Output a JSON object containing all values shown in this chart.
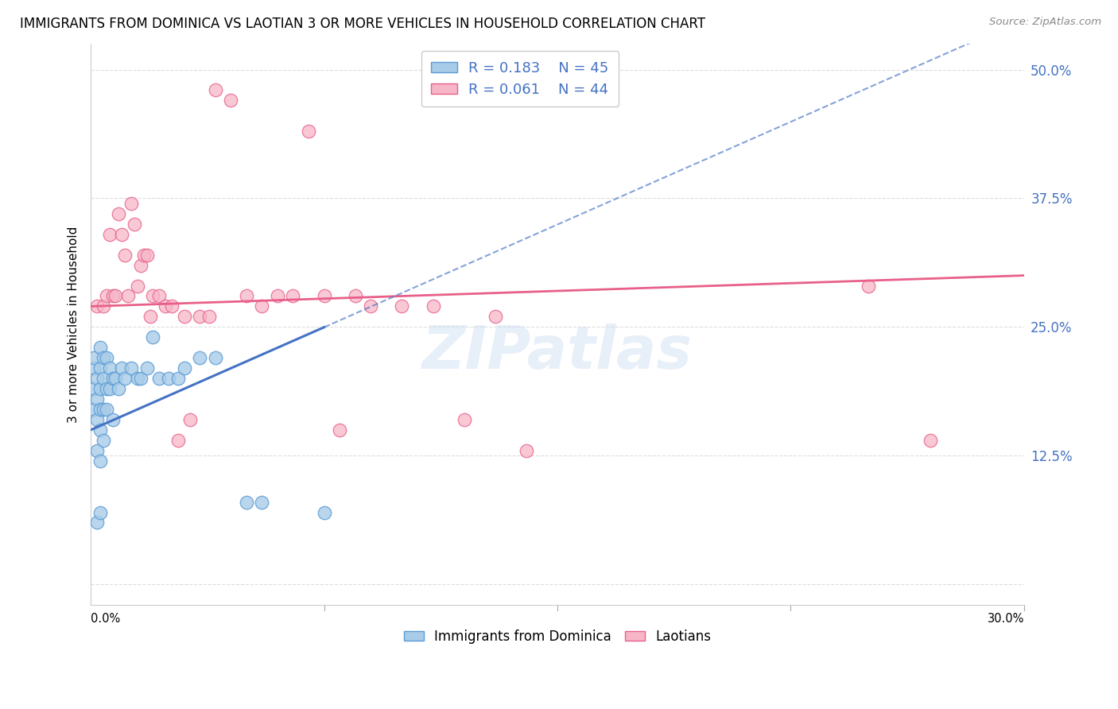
{
  "title": "IMMIGRANTS FROM DOMINICA VS LAOTIAN 3 OR MORE VEHICLES IN HOUSEHOLD CORRELATION CHART",
  "source": "Source: ZipAtlas.com",
  "ylabel": "3 or more Vehicles in Household",
  "xmin": 0.0,
  "xmax": 0.3,
  "ymin": -0.02,
  "ymax": 0.525,
  "ytick_vals": [
    0.0,
    0.125,
    0.25,
    0.375,
    0.5
  ],
  "ytick_labels": [
    "",
    "12.5%",
    "25.0%",
    "37.5%",
    "50.0%"
  ],
  "watermark": "ZIPatlas",
  "R1": "0.183",
  "N1": "45",
  "R2": "0.061",
  "N2": "44",
  "blue_fill": "#a8cce8",
  "blue_edge": "#5b9bd5",
  "pink_fill": "#f7b6c8",
  "pink_edge": "#e8608a",
  "blue_line": "#4472c4",
  "pink_line": "#e8608a",
  "blue_x": [
    0.001,
    0.001,
    0.001,
    0.001,
    0.002,
    0.002,
    0.002,
    0.002,
    0.002,
    0.003,
    0.003,
    0.003,
    0.003,
    0.003,
    0.003,
    0.003,
    0.004,
    0.004,
    0.004,
    0.004,
    0.005,
    0.005,
    0.005,
    0.006,
    0.006,
    0.007,
    0.007,
    0.008,
    0.009,
    0.01,
    0.011,
    0.013,
    0.015,
    0.016,
    0.018,
    0.02,
    0.022,
    0.025,
    0.028,
    0.03,
    0.035,
    0.04,
    0.05,
    0.055,
    0.075
  ],
  "blue_y": [
    0.17,
    0.19,
    0.21,
    0.22,
    0.06,
    0.13,
    0.16,
    0.18,
    0.2,
    0.07,
    0.12,
    0.15,
    0.17,
    0.19,
    0.21,
    0.23,
    0.14,
    0.17,
    0.2,
    0.22,
    0.17,
    0.19,
    0.22,
    0.19,
    0.21,
    0.16,
    0.2,
    0.2,
    0.19,
    0.21,
    0.2,
    0.21,
    0.2,
    0.2,
    0.21,
    0.24,
    0.2,
    0.2,
    0.2,
    0.21,
    0.22,
    0.22,
    0.08,
    0.08,
    0.07
  ],
  "pink_x": [
    0.002,
    0.004,
    0.005,
    0.006,
    0.007,
    0.008,
    0.009,
    0.01,
    0.011,
    0.012,
    0.013,
    0.014,
    0.015,
    0.016,
    0.017,
    0.018,
    0.019,
    0.02,
    0.022,
    0.024,
    0.026,
    0.028,
    0.03,
    0.032,
    0.035,
    0.038,
    0.04,
    0.045,
    0.05,
    0.055,
    0.06,
    0.065,
    0.07,
    0.075,
    0.08,
    0.085,
    0.09,
    0.1,
    0.11,
    0.12,
    0.13,
    0.14,
    0.25,
    0.27
  ],
  "pink_y": [
    0.27,
    0.27,
    0.28,
    0.34,
    0.28,
    0.28,
    0.36,
    0.34,
    0.32,
    0.28,
    0.37,
    0.35,
    0.29,
    0.31,
    0.32,
    0.32,
    0.26,
    0.28,
    0.28,
    0.27,
    0.27,
    0.14,
    0.26,
    0.16,
    0.26,
    0.26,
    0.48,
    0.47,
    0.28,
    0.27,
    0.28,
    0.28,
    0.44,
    0.28,
    0.15,
    0.28,
    0.27,
    0.27,
    0.27,
    0.16,
    0.26,
    0.13,
    0.29,
    0.14
  ]
}
